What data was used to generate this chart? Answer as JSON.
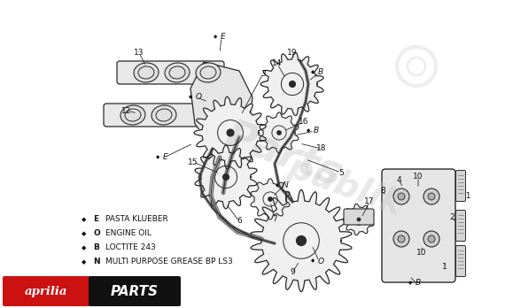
{
  "bg_color": "#ffffff",
  "dc": "#2a2a2a",
  "lc": "#2a2a2a",
  "label_color": "#111111",
  "watermark_color": "#c8c8c8",
  "aprilia_red": "#cc1111",
  "legend_items": [
    {
      "letter": "E",
      "text": "PASTA KLUEBER"
    },
    {
      "letter": "O",
      "text": "ENGINE OIL"
    },
    {
      "letter": "B",
      "text": "LOCTITE 243"
    },
    {
      "letter": "N",
      "text": "MULTI PURPOSE GREASE BP LS3"
    }
  ],
  "watermark_text": "Partspublik"
}
